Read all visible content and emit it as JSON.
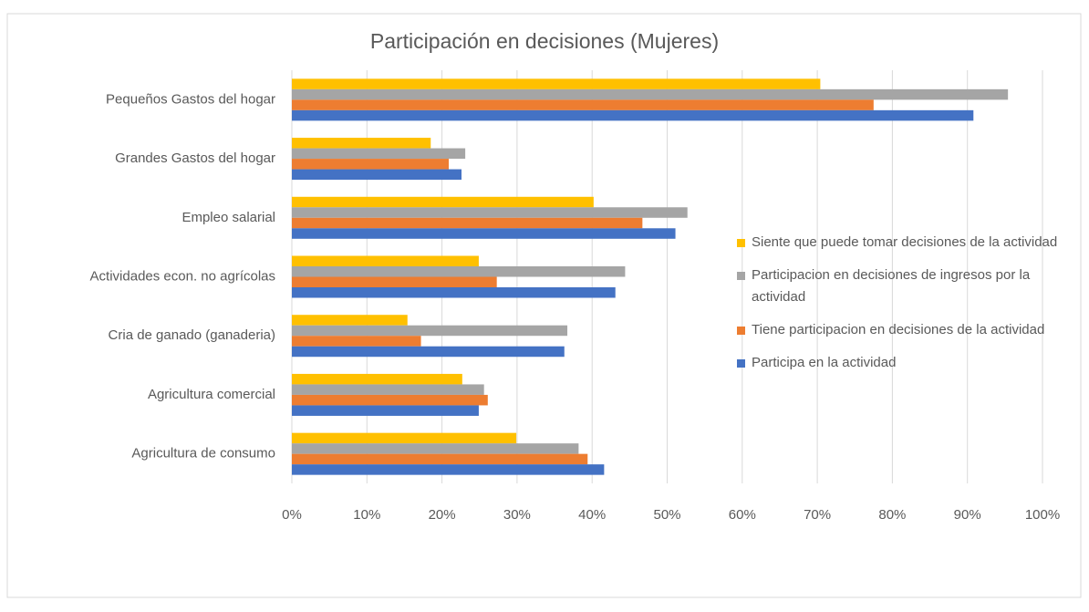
{
  "chart_data": {
    "type": "hbar",
    "title": "Participación en decisiones (Mujeres)",
    "categories": [
      "Pequeños Gastos del hogar",
      "Grandes Gastos  del hogar",
      "Empleo salarial",
      "Actividades econ. no agrícolas",
      "Cria de ganado (ganaderia)",
      "Agricultura comercial",
      "Agricultura de consumo"
    ],
    "series": [
      {
        "name": "Siente que puede tomar decisiones de la actividad",
        "color": "#ffc000",
        "values": [
          70.4,
          18.5,
          40.2,
          24.9,
          15.4,
          22.7,
          29.9
        ]
      },
      {
        "name": "Participacion en decisiones de ingresos por la actividad",
        "color": "#a5a5a5",
        "values": [
          95.4,
          23.1,
          52.7,
          44.4,
          36.7,
          25.6,
          38.2
        ]
      },
      {
        "name": "Tiene participacion en decisiones de la actividad",
        "color": "#ed7d31",
        "values": [
          77.5,
          20.9,
          46.7,
          27.3,
          17.2,
          26.1,
          39.4
        ]
      },
      {
        "name": "Participa en la actividad",
        "color": "#4472c4",
        "values": [
          90.8,
          22.6,
          51.1,
          43.1,
          36.3,
          24.9,
          41.6
        ]
      }
    ],
    "xlim": [
      0,
      100
    ],
    "xticks": [
      {
        "value": 0,
        "label": "0%"
      },
      {
        "value": 10,
        "label": "10%"
      },
      {
        "value": 20,
        "label": "20%"
      },
      {
        "value": 30,
        "label": "30%"
      },
      {
        "value": 40,
        "label": "40%"
      },
      {
        "value": 50,
        "label": "50%"
      },
      {
        "value": 60,
        "label": "60%"
      },
      {
        "value": 70,
        "label": "70%"
      },
      {
        "value": 80,
        "label": "80%"
      },
      {
        "value": 90,
        "label": "90%"
      },
      {
        "value": 100,
        "label": "100%"
      }
    ],
    "grid": true
  }
}
